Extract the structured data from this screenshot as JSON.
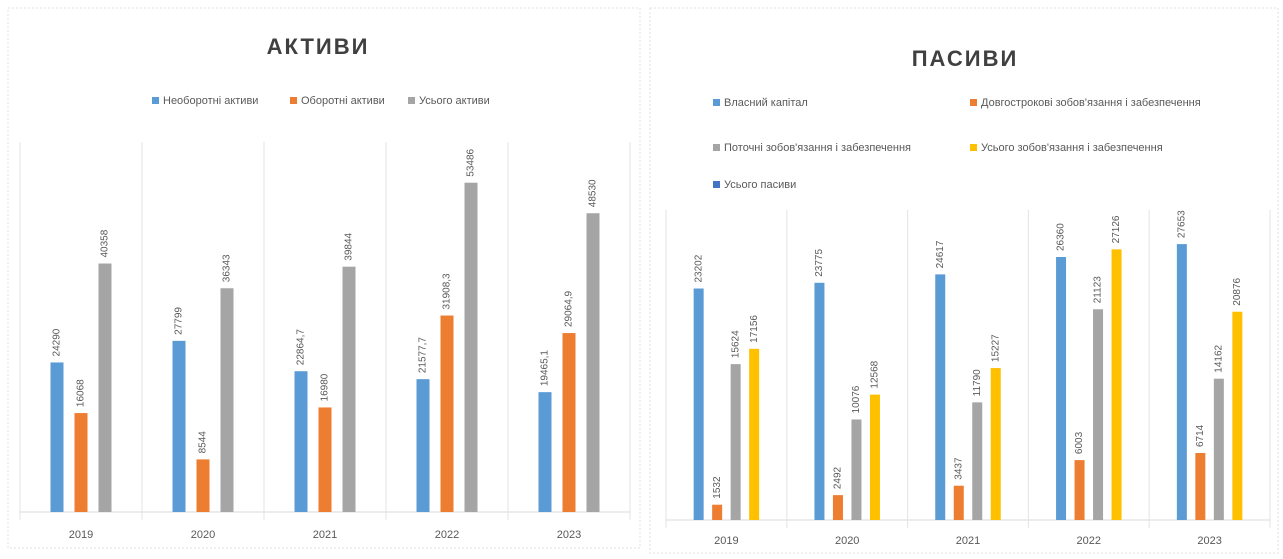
{
  "chart_data": [
    {
      "type": "bar",
      "title": "АКТИВИ",
      "categories": [
        "2019",
        "2020",
        "2021",
        "2022",
        "2023"
      ],
      "series": [
        {
          "name": "Необоротні активи",
          "color": "#5b9bd5",
          "values": [
            24290,
            27799,
            22864.7,
            21577.7,
            19465.1
          ],
          "value_labels": [
            "24290",
            "27799",
            "22864,7",
            "21577,7",
            "19465,1"
          ]
        },
        {
          "name": "Оборотні активи",
          "color": "#ed7d31",
          "values": [
            16068,
            8544,
            16980,
            31908.3,
            29064.9
          ],
          "value_labels": [
            "16068",
            "8544",
            "16980",
            "31908,3",
            "29064,9"
          ]
        },
        {
          "name": "Усього активи",
          "color": "#a5a5a5",
          "values": [
            40358,
            36343,
            39844,
            53486,
            48530
          ]
        }
      ]
    },
    {
      "type": "bar",
      "title": "ПАСИВИ",
      "categories": [
        "2019",
        "2020",
        "2021",
        "2022",
        "2023"
      ],
      "series": [
        {
          "name": "Власний капітал",
          "color": "#5b9bd5",
          "values": [
            23202,
            23775,
            24617,
            26360,
            27653
          ]
        },
        {
          "name": "Довгострокові зобов'язання і забезпечення",
          "color": "#ed7d31",
          "values": [
            1532,
            2492,
            3437,
            6003,
            6714
          ]
        },
        {
          "name": "Поточні зобов'язання і забезпечення",
          "color": "#a5a5a5",
          "values": [
            15624,
            10076,
            11790,
            21123,
            14162
          ]
        },
        {
          "name": "Усього зобов'язання і забезпечення",
          "color": "#ffc000",
          "values": [
            17156,
            12568,
            15227,
            27126,
            20876
          ]
        },
        {
          "name": "Усього пасиви",
          "color": "#4472c4",
          "values": [
            null,
            null,
            null,
            null,
            null
          ]
        }
      ]
    }
  ]
}
